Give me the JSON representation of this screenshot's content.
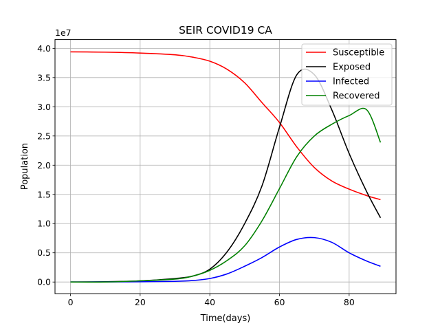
{
  "chart_data": {
    "type": "line",
    "title": "SEIR COVID19 CA",
    "xlabel": "Time(days)",
    "ylabel": "Population",
    "y_scale_label": "1e7",
    "xlim": [
      -4.45,
      93.45
    ],
    "ylim": [
      -0.2,
      4.15
    ],
    "xticks": [
      0,
      20,
      40,
      60,
      80
    ],
    "xtick_labels": [
      "0",
      "20",
      "40",
      "60",
      "80"
    ],
    "yticks": [
      0.0,
      0.5,
      1.0,
      1.5,
      2.0,
      2.5,
      3.0,
      3.5,
      4.0
    ],
    "ytick_labels": [
      "0.0",
      "0.5",
      "1.0",
      "1.5",
      "2.0",
      "2.5",
      "3.0",
      "3.5",
      "4.0"
    ],
    "grid": true,
    "legend_position": "top-right",
    "series": [
      {
        "name": "Susceptible",
        "color": "#ff0000",
        "x": [
          0,
          10,
          20,
          30,
          35,
          40,
          45,
          50,
          55,
          60,
          65,
          70,
          75,
          80,
          85,
          89
        ],
        "y": [
          3.94,
          3.935,
          3.92,
          3.89,
          3.85,
          3.78,
          3.64,
          3.41,
          3.07,
          2.73,
          2.31,
          1.96,
          1.73,
          1.59,
          1.48,
          1.41
        ]
      },
      {
        "name": "Exposed",
        "color": "#000000",
        "x": [
          0,
          10,
          20,
          30,
          35,
          40,
          45,
          50,
          55,
          60,
          65,
          70,
          75,
          80,
          85,
          89
        ],
        "y": [
          0.0,
          0.005,
          0.02,
          0.06,
          0.1,
          0.22,
          0.52,
          1.0,
          1.65,
          2.65,
          3.55,
          3.55,
          2.95,
          2.2,
          1.55,
          1.1
        ]
      },
      {
        "name": "Infected",
        "color": "#0000ff",
        "x": [
          0,
          10,
          20,
          30,
          35,
          40,
          45,
          50,
          55,
          60,
          65,
          70,
          75,
          80,
          85,
          89
        ],
        "y": [
          0.0,
          0.002,
          0.005,
          0.012,
          0.025,
          0.06,
          0.14,
          0.27,
          0.42,
          0.6,
          0.73,
          0.76,
          0.68,
          0.5,
          0.36,
          0.27
        ]
      },
      {
        "name": "Recovered",
        "color": "#008000",
        "x": [
          0,
          10,
          20,
          30,
          35,
          40,
          45,
          50,
          55,
          60,
          65,
          70,
          75,
          80,
          85,
          89
        ],
        "y": [
          0.0,
          0.0,
          0.02,
          0.05,
          0.1,
          0.2,
          0.37,
          0.62,
          1.05,
          1.6,
          2.15,
          2.5,
          2.7,
          2.85,
          2.95,
          2.39
        ]
      }
    ]
  }
}
